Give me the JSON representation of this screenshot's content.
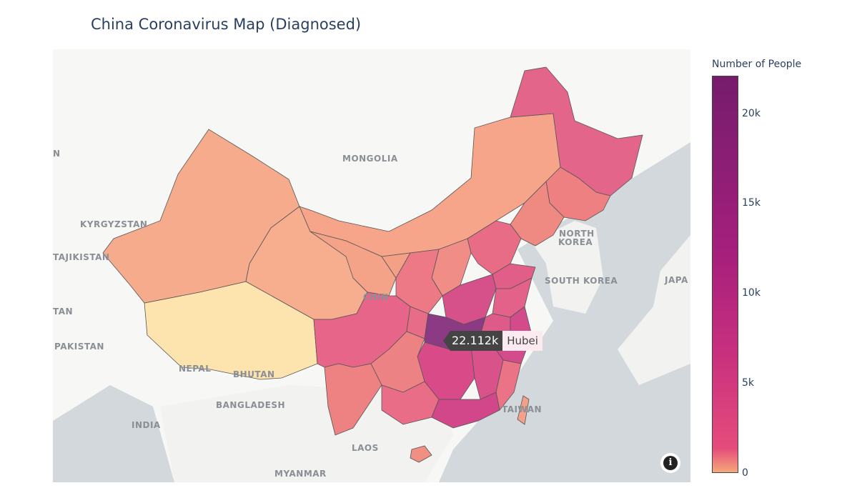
{
  "title": "China Coronavirus Map (Diagnosed)",
  "map_labels": {
    "mongolia": "MONGOLIA",
    "kyrgyzstan": "KYRGYZSTAN",
    "tajikistan": "TAJIKISTAN",
    "pakistan": "PAKISTAN",
    "india": "INDIA",
    "nepal": "NEPAL",
    "bhutan": "BHUTAN",
    "bangladesh": "BANGLADESH",
    "myanmar": "MYANMAR",
    "laos": "LAOS",
    "north_korea_1": "NORTH",
    "north_korea_2": "KOREA",
    "south_korea": "SOUTH KOREA",
    "japan": "JAPA",
    "taiwan": "TAIWAN",
    "china": "CHIN",
    "edge_n": "N",
    "edge_tan": "TAN"
  },
  "hover": {
    "value": "22.112k",
    "name": "Hubei"
  },
  "colorbar": {
    "title": "Number of People",
    "ticks": [
      "20k",
      "15k",
      "10k",
      "5k",
      "0"
    ],
    "colors": [
      "#f6a97a",
      "#e54c7c",
      "#c8307e",
      "#a61f7c",
      "#761c6c"
    ]
  },
  "chart_data": {
    "type": "choropleth",
    "title": "China Coronavirus Map (Diagnosed)",
    "colorbar_title": "Number of People",
    "range": [
      0,
      22112
    ],
    "regions": [
      {
        "name": "Hubei",
        "value": 22112
      }
    ]
  },
  "info_icon": "info-icon"
}
